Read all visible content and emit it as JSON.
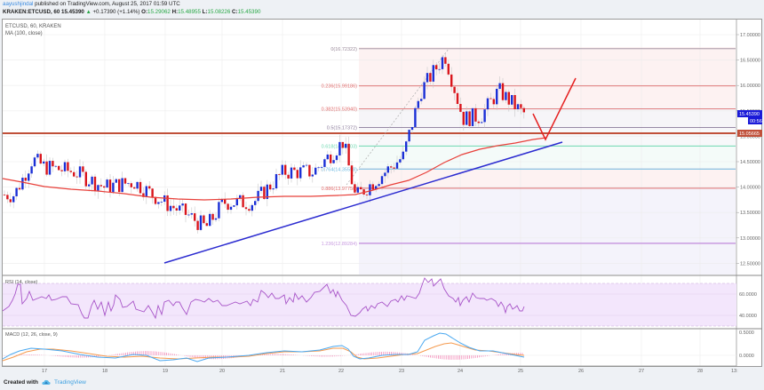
{
  "header": {
    "author": "aayushjindal",
    "published_text": "published on TradingView.com, August 25, 2017 01:59 UTC",
    "symbol": "KRAKEN:ETCUSD, 60",
    "last": "15.45390",
    "change": "+0.17390 (+1.14%)",
    "open_label": "O:",
    "open": "15.29062",
    "high_label": "H:",
    "high": "15.48955",
    "low_label": "L:",
    "low": "15.08226",
    "close_label": "C:",
    "close": "15.45390"
  },
  "main_panel": {
    "legend_symbol": "ETCUSD, 60, KRAKEN",
    "legend_ma": "MA (100, close)",
    "price_badge_last": "15.45390",
    "price_badge_countdown": "00:56",
    "price_badge_hline": "15.05665"
  },
  "rsi_panel": {
    "legend": "RSI (14, close)"
  },
  "macd_panel": {
    "legend": "MACD (12, 26, close, 9)"
  },
  "footer": {
    "created_with": "Created with",
    "brand": "TradingView"
  },
  "colors": {
    "bull": "#1a2fd6",
    "bear": "#d9151c",
    "ma": "#e8403a",
    "trendline": "#2b2bd0",
    "hline": "#c0503a",
    "rsi_line": "#a855c8",
    "rsi_fill": "#f3e6fc",
    "macd_line": "#4aa8f0",
    "signal_line": "#f59a4e",
    "hist": "#ee5a9a",
    "fib_0": "#9a8a9a",
    "fib_0236": "#e06a6a",
    "fib_0382": "#e06a6a",
    "fib_05": "#8a7a9a",
    "fib_0618": "#6dd8b0",
    "fib_0764": "#6ab8e0",
    "fib_0886": "#e06a6a",
    "fib_1236": "#c89ae0"
  },
  "chart_data": [
    {
      "type": "candlestick",
      "title": "ETCUSD, 60, KRAKEN",
      "xlabel": "",
      "ylabel": "Price (USD)",
      "x_ticks": [
        "17",
        "18",
        "19",
        "20",
        "21",
        "22",
        "23",
        "24",
        "25",
        "26",
        "27",
        "28",
        "13:"
      ],
      "y_ticks": [
        "17.00000",
        "16.50000",
        "16.00000",
        "15.50000",
        "15.00000",
        "14.50000",
        "14.00000",
        "13.50000",
        "13.00000",
        "12.50000"
      ],
      "ylim": [
        12.3,
        17.3
      ],
      "grid": true,
      "overlays": [
        {
          "name": "MA (100, close)",
          "type": "line",
          "color": "#e8403a"
        },
        {
          "name": "Horizontal line",
          "value": 15.05665
        },
        {
          "name": "Trendline (blue)",
          "from": {
            "x": "19",
            "y": 12.45
          },
          "to": {
            "x": "25.6",
            "y": 14.85
          }
        },
        {
          "name": "Projected path (red)",
          "points": [
            {
              "x": "25.1",
              "y": 15.55
            },
            {
              "x": "25.4",
              "y": 14.95
            },
            {
              "x": "25.9",
              "y": 16.2
            }
          ]
        }
      ],
      "fibonacci": [
        {
          "level": "0",
          "value": 16.72322
        },
        {
          "level": "0.236",
          "value": 15.99186
        },
        {
          "level": "0.382",
          "value": 15.5394
        },
        {
          "level": "0.5",
          "value": 15.17372
        },
        {
          "level": "0.618",
          "value": 14.80803
        },
        {
          "level": "0.764",
          "value": 14.35558
        },
        {
          "level": "0.886",
          "value": 13.9775
        },
        {
          "level": "1.236",
          "value": 12.89284
        }
      ],
      "approx_close_path": [
        {
          "x": "16.5",
          "close": 13.85
        },
        {
          "x": "16.8",
          "close": 14.55
        },
        {
          "x": "17",
          "close": 14.4
        },
        {
          "x": "17.5",
          "close": 14.3
        },
        {
          "x": "18",
          "close": 14.0
        },
        {
          "x": "18.5",
          "close": 14.1
        },
        {
          "x": "19",
          "close": 13.7
        },
        {
          "x": "19.4",
          "close": 13.45
        },
        {
          "x": "19.7",
          "close": 13.2
        },
        {
          "x": "20",
          "close": 13.7
        },
        {
          "x": "20.5",
          "close": 13.7
        },
        {
          "x": "21",
          "close": 14.3
        },
        {
          "x": "21.5",
          "close": 14.3
        },
        {
          "x": "22",
          "close": 14.9
        },
        {
          "x": "22.2",
          "close": 13.8
        },
        {
          "x": "22.5",
          "close": 14.1
        },
        {
          "x": "23",
          "close": 14.6
        },
        {
          "x": "23.3",
          "close": 15.9
        },
        {
          "x": "23.7",
          "close": 16.6
        },
        {
          "x": "24",
          "close": 15.35
        },
        {
          "x": "24.3",
          "close": 15.4
        },
        {
          "x": "24.6",
          "close": 15.9
        },
        {
          "x": "25",
          "close": 15.45
        }
      ],
      "last_price": 15.4539
    },
    {
      "type": "line",
      "title": "RSI (14, close)",
      "y_ticks": [
        "60.0000",
        "40.0000"
      ],
      "ylim": [
        20,
        80
      ],
      "bands": [
        30,
        70
      ],
      "approx_values": [
        {
          "x": "16.5",
          "value": 48
        },
        {
          "x": "16.7",
          "value": 70
        },
        {
          "x": "17",
          "value": 58
        },
        {
          "x": "17.5",
          "value": 55
        },
        {
          "x": "17.9",
          "value": 38
        },
        {
          "x": "18.5",
          "value": 52
        },
        {
          "x": "19",
          "value": 37
        },
        {
          "x": "19.5",
          "value": 52
        },
        {
          "x": "20",
          "value": 53
        },
        {
          "x": "20.5",
          "value": 52
        },
        {
          "x": "21",
          "value": 64
        },
        {
          "x": "21.5",
          "value": 60
        },
        {
          "x": "21.8",
          "value": 70
        },
        {
          "x": "22.1",
          "value": 40
        },
        {
          "x": "22.5",
          "value": 52
        },
        {
          "x": "23",
          "value": 58
        },
        {
          "x": "23.4",
          "value": 74
        },
        {
          "x": "23.7",
          "value": 74
        },
        {
          "x": "24",
          "value": 46
        },
        {
          "x": "24.3",
          "value": 58
        },
        {
          "x": "24.6",
          "value": 52
        },
        {
          "x": "25",
          "value": 48
        }
      ]
    },
    {
      "type": "line+bar",
      "title": "MACD (12, 26, close, 9)",
      "y_ticks": [
        "0.5000",
        "0.0000"
      ],
      "series": [
        {
          "name": "MACD",
          "color": "#4aa8f0"
        },
        {
          "name": "Signal",
          "color": "#f59a4e"
        },
        {
          "name": "Histogram",
          "color": "#ee5a9a"
        }
      ],
      "approx_values": [
        {
          "x": "16.5",
          "macd": -0.05,
          "signal": -0.1
        },
        {
          "x": "17",
          "macd": 0.2,
          "signal": 0.2
        },
        {
          "x": "18",
          "macd": 0.0,
          "signal": 0.05
        },
        {
          "x": "19",
          "macd": -0.15,
          "signal": -0.05
        },
        {
          "x": "20",
          "macd": 0.0,
          "signal": 0.0
        },
        {
          "x": "21",
          "macd": 0.15,
          "signal": 0.1
        },
        {
          "x": "22",
          "macd": 0.3,
          "signal": 0.25
        },
        {
          "x": "22.3",
          "macd": -0.05,
          "signal": 0.05
        },
        {
          "x": "23",
          "macd": 0.1,
          "signal": 0.1
        },
        {
          "x": "23.7",
          "macd": 0.55,
          "signal": 0.45
        },
        {
          "x": "24.2",
          "macd": 0.2,
          "signal": 0.3
        },
        {
          "x": "25",
          "macd": -0.03,
          "signal": 0.02
        }
      ]
    }
  ]
}
